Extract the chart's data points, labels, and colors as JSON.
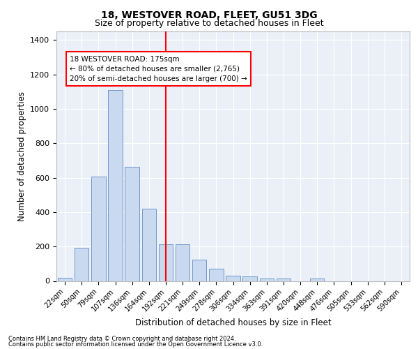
{
  "title1": "18, WESTOVER ROAD, FLEET, GU51 3DG",
  "title2": "Size of property relative to detached houses in Fleet",
  "xlabel": "Distribution of detached houses by size in Fleet",
  "ylabel": "Number of detached properties",
  "bar_labels": [
    "22sqm",
    "50sqm",
    "79sqm",
    "107sqm",
    "136sqm",
    "164sqm",
    "192sqm",
    "221sqm",
    "249sqm",
    "278sqm",
    "306sqm",
    "334sqm",
    "363sqm",
    "391sqm",
    "420sqm",
    "448sqm",
    "476sqm",
    "505sqm",
    "533sqm",
    "562sqm",
    "590sqm"
  ],
  "bar_values": [
    18,
    193,
    605,
    1110,
    665,
    420,
    213,
    213,
    125,
    70,
    32,
    27,
    14,
    14,
    0,
    13,
    0,
    0,
    0,
    0,
    0
  ],
  "bar_color": "#c9d9f0",
  "bar_edge_color": "#7099c8",
  "vline_x": 6.0,
  "vline_color": "red",
  "annotation_text": "18 WESTOVER ROAD: 175sqm\n← 80% of detached houses are smaller (2,765)\n20% of semi-detached houses are larger (700) →",
  "annotation_box_color": "white",
  "annotation_box_edge": "red",
  "ylim": [
    0,
    1450
  ],
  "yticks": [
    0,
    200,
    400,
    600,
    800,
    1000,
    1200,
    1400
  ],
  "footer1": "Contains HM Land Registry data © Crown copyright and database right 2024.",
  "footer2": "Contains public sector information licensed under the Open Government Licence v3.0.",
  "plot_bg_color": "#eaeff8"
}
